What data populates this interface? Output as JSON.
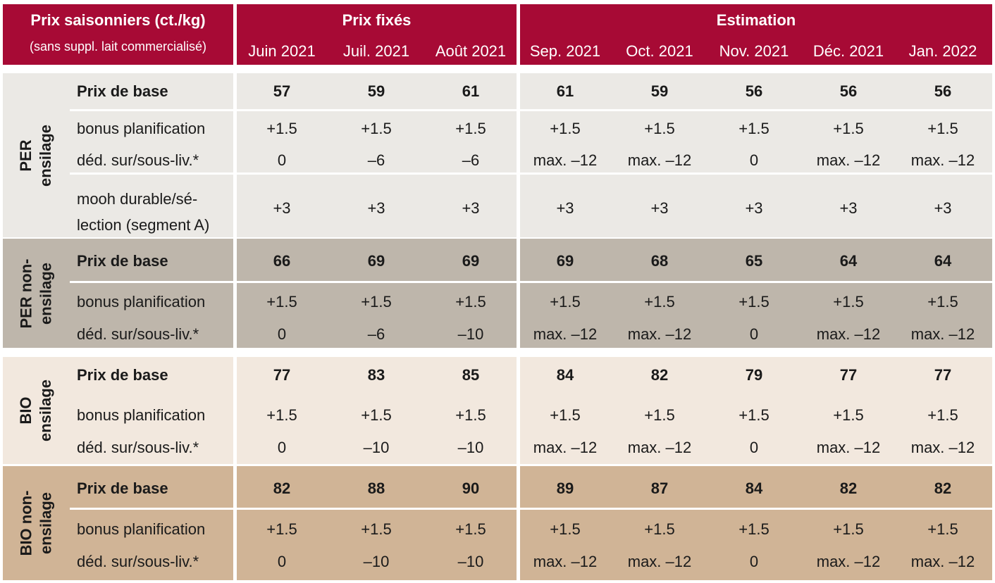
{
  "header": {
    "title": "Prix saisonniers (ct./kg)",
    "subtitle": "(sans suppl. lait commercialisé)",
    "group_fixed": "Prix fixés",
    "group_estimate": "Estimation",
    "months": [
      "Juin 2021",
      "Juil. 2021",
      "Août 2021",
      "Sep. 2021",
      "Oct. 2021",
      "Nov. 2021",
      "Déc. 2021",
      "Jan. 2022"
    ]
  },
  "colors": {
    "header_bg": "#a70a35",
    "per_ensilage_bg": "#ebe9e5",
    "per_non_ensilage_bg": "#beb6ab",
    "bio_ensilage_bg": "#f2e8de",
    "bio_non_ensilage_bg": "#d0b496"
  },
  "groups": [
    {
      "name": "PER ensilage",
      "label_line1": "PER",
      "label_line2": "ensilage",
      "rows": [
        {
          "label": "Prix de base",
          "values": [
            "57",
            "59",
            "61",
            "61",
            "59",
            "56",
            "56",
            "56"
          ]
        },
        {
          "label": "bonus planification",
          "values": [
            "+1.5",
            "+1.5",
            "+1.5",
            "+1.5",
            "+1.5",
            "+1.5",
            "+1.5",
            "+1.5"
          ]
        },
        {
          "label": "déd. sur/sous-liv.*",
          "values": [
            "0",
            "–6",
            "–6",
            "max. –12",
            "max. –12",
            "0",
            "max. –12",
            "max. –12"
          ]
        },
        {
          "label_line1": "mooh durable/sé-",
          "label_line2": "lection (segment A)",
          "values": [
            "+3",
            "+3",
            "+3",
            "+3",
            "+3",
            "+3",
            "+3",
            "+3"
          ]
        }
      ]
    },
    {
      "name": "PER non-ensilage",
      "label_line1": "PER non-",
      "label_line2": "ensilage",
      "rows": [
        {
          "label": "Prix de base",
          "values": [
            "66",
            "69",
            "69",
            "69",
            "68",
            "65",
            "64",
            "64"
          ]
        },
        {
          "label": "bonus planification",
          "values": [
            "+1.5",
            "+1.5",
            "+1.5",
            "+1.5",
            "+1.5",
            "+1.5",
            "+1.5",
            "+1.5"
          ]
        },
        {
          "label": "déd. sur/sous-liv.*",
          "values": [
            "0",
            "–6",
            "–10",
            "max. –12",
            "max. –12",
            "0",
            "max. –12",
            "max. –12"
          ]
        }
      ]
    },
    {
      "name": "BIO ensilage",
      "label_line1": "BIO",
      "label_line2": "ensilage",
      "rows": [
        {
          "label": "Prix de base",
          "values": [
            "77",
            "83",
            "85",
            "84",
            "82",
            "79",
            "77",
            "77"
          ]
        },
        {
          "label": "bonus planification",
          "values": [
            "+1.5",
            "+1.5",
            "+1.5",
            "+1.5",
            "+1.5",
            "+1.5",
            "+1.5",
            "+1.5"
          ]
        },
        {
          "label": "déd. sur/sous-liv.*",
          "values": [
            "0",
            "–10",
            "–10",
            "max. –12",
            "max. –12",
            "0",
            "max. –12",
            "max. –12"
          ]
        }
      ]
    },
    {
      "name": "BIO non-ensilage",
      "label_line1": "BIO non-",
      "label_line2": "ensilage",
      "rows": [
        {
          "label": "Prix de base",
          "values": [
            "82",
            "88",
            "90",
            "89",
            "87",
            "84",
            "82",
            "82"
          ]
        },
        {
          "label": "bonus planification",
          "values": [
            "+1.5",
            "+1.5",
            "+1.5",
            "+1.5",
            "+1.5",
            "+1.5",
            "+1.5",
            "+1.5"
          ]
        },
        {
          "label": "déd. sur/sous-liv.*",
          "values": [
            "0",
            "–10",
            "–10",
            "max. –12",
            "max. –12",
            "0",
            "max. –12",
            "max. –12"
          ]
        }
      ]
    }
  ]
}
